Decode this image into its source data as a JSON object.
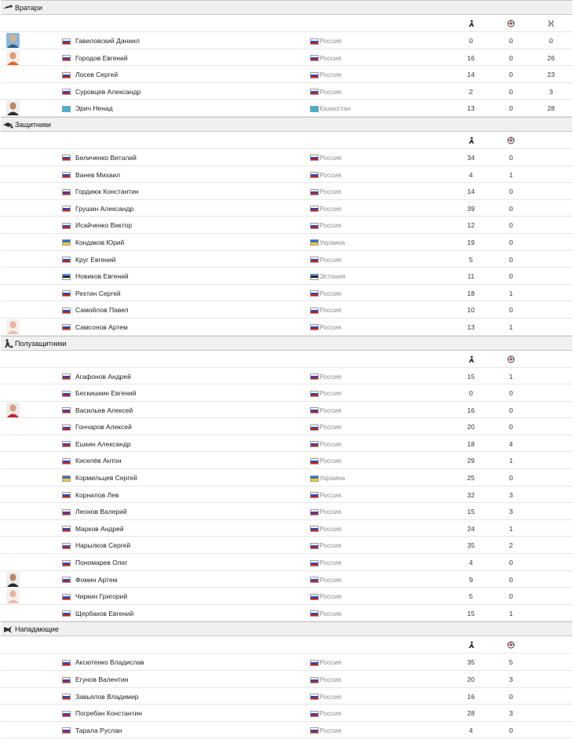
{
  "sections": [
    {
      "title": "Вратари",
      "icon": "goalkeeper-icon",
      "stat_icons": [
        "games-icon",
        "goals-icon",
        "conceded-icon"
      ],
      "players": [
        {
          "name": "Гавиловский Даниил",
          "country": "Россия",
          "flag": "ru",
          "avatar": "photo-blue",
          "stats": [
            "0",
            "0",
            "0"
          ]
        },
        {
          "name": "Городов Евгений",
          "country": "Россия",
          "flag": "ru",
          "avatar": "photo-orange",
          "stats": [
            "16",
            "0",
            "26"
          ]
        },
        {
          "name": "Лосев Сергей",
          "country": "Россия",
          "flag": "ru",
          "stats": [
            "14",
            "0",
            "23"
          ]
        },
        {
          "name": "Суровцев Александр",
          "country": "Россия",
          "flag": "ru",
          "stats": [
            "2",
            "0",
            "3"
          ]
        },
        {
          "name": "Эрич Ненад",
          "country": "Казахстан",
          "flag": "kz",
          "avatar": "photo-dark",
          "stats": [
            "13",
            "0",
            "28"
          ]
        }
      ]
    },
    {
      "title": "Защитники",
      "icon": "defender-icon",
      "stat_icons": [
        "games-icon",
        "goals-icon"
      ],
      "players": [
        {
          "name": "Беличенко Виталий",
          "country": "Россия",
          "flag": "ru",
          "stats": [
            "34",
            "0"
          ]
        },
        {
          "name": "Ванев Михаил",
          "country": "Россия",
          "flag": "ru",
          "stats": [
            "4",
            "1"
          ]
        },
        {
          "name": "Гордиюк Константин",
          "country": "Россия",
          "flag": "ru",
          "stats": [
            "14",
            "0"
          ]
        },
        {
          "name": "Грушин Александр",
          "country": "Россия",
          "flag": "ru",
          "stats": [
            "39",
            "0"
          ]
        },
        {
          "name": "Исайченко Виктор",
          "country": "Россия",
          "flag": "ru",
          "stats": [
            "12",
            "0"
          ]
        },
        {
          "name": "Кондаков Юрий",
          "country": "Украина",
          "flag": "ua",
          "stats": [
            "19",
            "0"
          ]
        },
        {
          "name": "Круг Евгений",
          "country": "Россия",
          "flag": "ru",
          "stats": [
            "5",
            "0"
          ]
        },
        {
          "name": "Новиков Евгений",
          "country": "Эстония",
          "flag": "ee",
          "stats": [
            "11",
            "0"
          ]
        },
        {
          "name": "Рехтин Сергей",
          "country": "Россия",
          "flag": "ru",
          "stats": [
            "18",
            "1"
          ]
        },
        {
          "name": "Самойлов Павел",
          "country": "Россия",
          "flag": "ru",
          "stats": [
            "10",
            "0"
          ]
        },
        {
          "name": "Самсонов Артем",
          "country": "Россия",
          "flag": "ru",
          "avatar": "photo-bald",
          "stats": [
            "13",
            "1"
          ]
        }
      ]
    },
    {
      "title": "Полузащитники",
      "icon": "midfielder-icon",
      "stat_icons": [
        "games-icon",
        "goals-icon"
      ],
      "players": [
        {
          "name": "Агафонов Андрей",
          "country": "Россия",
          "flag": "ru",
          "stats": [
            "15",
            "1"
          ]
        },
        {
          "name": "Бескишкин Евгений",
          "country": "Россия",
          "flag": "ru",
          "stats": [
            "0",
            "0"
          ]
        },
        {
          "name": "Васильев Алексей",
          "country": "Россия",
          "flag": "ru",
          "avatar": "photo-red",
          "stats": [
            "16",
            "0"
          ]
        },
        {
          "name": "Гончаров Алексей",
          "country": "Россия",
          "flag": "ru",
          "stats": [
            "20",
            "0"
          ]
        },
        {
          "name": "Ешкин Александр",
          "country": "Россия",
          "flag": "ru",
          "stats": [
            "18",
            "4"
          ]
        },
        {
          "name": "Киселёв Антон",
          "country": "Россия",
          "flag": "ru",
          "stats": [
            "29",
            "1"
          ]
        },
        {
          "name": "Кормильцев Сергей",
          "country": "Украина",
          "flag": "ua",
          "stats": [
            "25",
            "0"
          ]
        },
        {
          "name": "Корнилов Лев",
          "country": "Россия",
          "flag": "ru",
          "stats": [
            "32",
            "3"
          ]
        },
        {
          "name": "Леонов Валерий",
          "country": "Россия",
          "flag": "ru",
          "stats": [
            "15",
            "3"
          ]
        },
        {
          "name": "Марков Андрей",
          "country": "Россия",
          "flag": "ru",
          "stats": [
            "24",
            "1"
          ]
        },
        {
          "name": "Нарылков Сергей",
          "country": "Россия",
          "flag": "ru",
          "stats": [
            "35",
            "2"
          ]
        },
        {
          "name": "Пономарев Олег",
          "country": "Россия",
          "flag": "ru",
          "stats": [
            "4",
            "0"
          ]
        },
        {
          "name": "Фомин Артем",
          "country": "Россия",
          "flag": "ru",
          "avatar": "photo-dark",
          "stats": [
            "9",
            "0"
          ]
        },
        {
          "name": "Чиркин Григорий",
          "country": "Россия",
          "flag": "ru",
          "avatar": "photo-bald",
          "stats": [
            "5",
            "0"
          ]
        },
        {
          "name": "Щербаков Евгений",
          "country": "Россия",
          "flag": "ru",
          "stats": [
            "15",
            "1"
          ]
        }
      ]
    },
    {
      "title": "Нападающие",
      "icon": "forward-icon",
      "stat_icons": [
        "games-icon",
        "goals-icon"
      ],
      "players": [
        {
          "name": "Аксютенко Владислав",
          "country": "Россия",
          "flag": "ru",
          "stats": [
            "35",
            "5"
          ]
        },
        {
          "name": "Егунов Валентин",
          "country": "Россия",
          "flag": "ru",
          "stats": [
            "20",
            "3"
          ]
        },
        {
          "name": "Завьялов Владимир",
          "country": "Россия",
          "flag": "ru",
          "stats": [
            "16",
            "0"
          ]
        },
        {
          "name": "Погребан Константин",
          "country": "Россия",
          "flag": "ru",
          "stats": [
            "28",
            "3"
          ]
        },
        {
          "name": "Тарала Руслан",
          "country": "Россия",
          "flag": "ru",
          "stats": [
            "4",
            "0"
          ]
        }
      ]
    }
  ]
}
